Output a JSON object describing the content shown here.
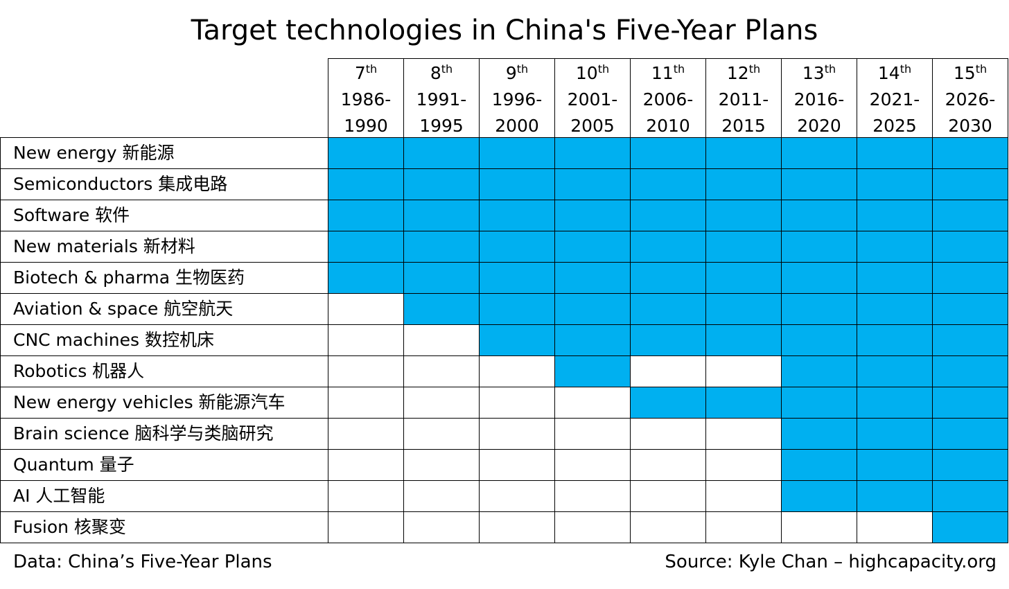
{
  "title": "Target technologies in China's Five-Year Plans",
  "footer": {
    "data_note": "Data: China’s Five-Year Plans",
    "source_note": "Source: Kyle Chan – highcapacity.org"
  },
  "colors": {
    "target": "#00b0f0",
    "not_target": "#ffffff"
  },
  "chart_data": {
    "type": "table",
    "title": "Target technologies in China's Five-Year Plans",
    "columns": [
      {
        "num": "7",
        "suffix": "th",
        "start": "1986-",
        "end": "1990"
      },
      {
        "num": "8",
        "suffix": "th",
        "start": "1991-",
        "end": "1995"
      },
      {
        "num": "9",
        "suffix": "th",
        "start": "1996-",
        "end": "2000"
      },
      {
        "num": "10",
        "suffix": "th",
        "start": "2001-",
        "end": "2005"
      },
      {
        "num": "11",
        "suffix": "th",
        "start": "2006-",
        "end": "2010"
      },
      {
        "num": "12",
        "suffix": "th",
        "start": "2011-",
        "end": "2015"
      },
      {
        "num": "13",
        "suffix": "th",
        "start": "2016-",
        "end": "2020"
      },
      {
        "num": "14",
        "suffix": "th",
        "start": "2021-",
        "end": "2025"
      },
      {
        "num": "15",
        "suffix": "th",
        "start": "2026-",
        "end": "2030"
      }
    ],
    "rows": [
      {
        "label": "New energy 新能源",
        "values": [
          1,
          1,
          1,
          1,
          1,
          1,
          1,
          1,
          1
        ]
      },
      {
        "label": "Semiconductors 集成电路",
        "values": [
          1,
          1,
          1,
          1,
          1,
          1,
          1,
          1,
          1
        ]
      },
      {
        "label": "Software 软件",
        "values": [
          1,
          1,
          1,
          1,
          1,
          1,
          1,
          1,
          1
        ]
      },
      {
        "label": "New materials 新材料",
        "values": [
          1,
          1,
          1,
          1,
          1,
          1,
          1,
          1,
          1
        ]
      },
      {
        "label": "Biotech & pharma 生物医药",
        "values": [
          1,
          1,
          1,
          1,
          1,
          1,
          1,
          1,
          1
        ]
      },
      {
        "label": "Aviation & space 航空航天",
        "values": [
          0,
          1,
          1,
          1,
          1,
          1,
          1,
          1,
          1
        ]
      },
      {
        "label": "CNC machines 数控机床",
        "values": [
          0,
          0,
          1,
          1,
          1,
          1,
          1,
          1,
          1
        ]
      },
      {
        "label": "Robotics 机器人",
        "values": [
          0,
          0,
          0,
          1,
          0,
          0,
          1,
          1,
          1
        ]
      },
      {
        "label": "New energy vehicles 新能源汽车",
        "values": [
          0,
          0,
          0,
          0,
          1,
          1,
          1,
          1,
          1
        ]
      },
      {
        "label": "Brain science 脑科学与类脑研究",
        "values": [
          0,
          0,
          0,
          0,
          0,
          0,
          1,
          1,
          1
        ]
      },
      {
        "label": "Quantum 量子",
        "values": [
          0,
          0,
          0,
          0,
          0,
          0,
          1,
          1,
          1
        ]
      },
      {
        "label": "AI 人工智能",
        "values": [
          0,
          0,
          0,
          0,
          0,
          0,
          1,
          1,
          1
        ]
      },
      {
        "label": "Fusion 核聚变",
        "values": [
          0,
          0,
          0,
          0,
          0,
          0,
          0,
          0,
          1
        ]
      }
    ]
  }
}
